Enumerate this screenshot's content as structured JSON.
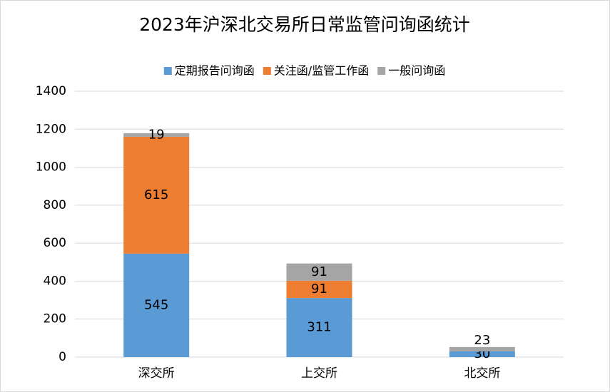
{
  "chart_data": {
    "type": "stacked-bar",
    "title": "2023年沪深北交易所日常监管问询函统计",
    "categories": [
      "深交所",
      "上交所",
      "北交所"
    ],
    "series": [
      {
        "name": "定期报告问询函",
        "color": "#5b9bd5",
        "values": [
          545,
          311,
          30
        ]
      },
      {
        "name": "关注函/监管工作函",
        "color": "#ed7d31",
        "values": [
          615,
          91,
          null
        ]
      },
      {
        "name": "一般问询函",
        "color": "#a5a5a5",
        "values": [
          19,
          91,
          23
        ]
      }
    ],
    "ylim": [
      0,
      1400
    ],
    "yticks": [
      0,
      200,
      400,
      600,
      800,
      1000,
      1200,
      1400
    ],
    "grid": true,
    "legend": "top"
  }
}
